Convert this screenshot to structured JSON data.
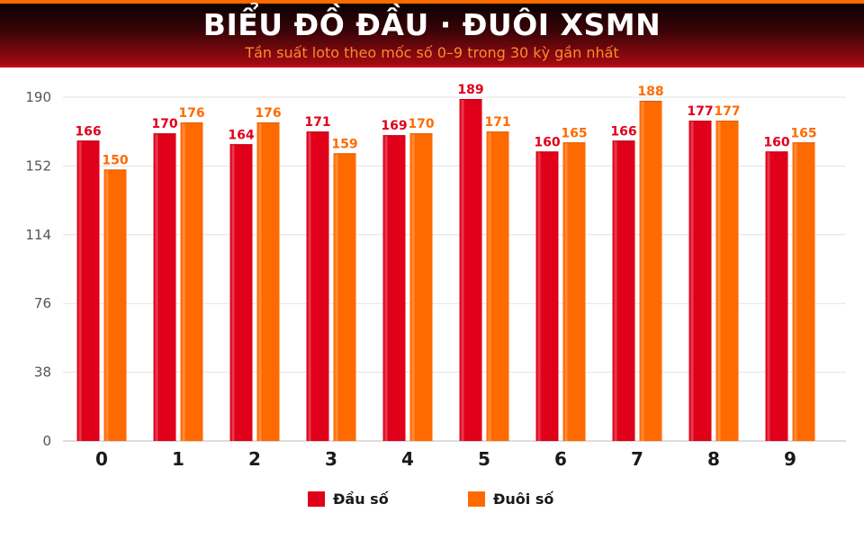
{
  "header": {
    "title": "BIỂU ĐỒ ĐẦU · ĐUÔI XSMN",
    "subtitle": "Tần suất loto theo mốc số 0–9 trong 30 kỳ gần nhất"
  },
  "colors": {
    "dau": "#e0001a",
    "duoi": "#ff6a00",
    "header_bg_dark": "#0b0102",
    "header_bg_red": "#a30a12",
    "accent_orange": "#ff6a00"
  },
  "chart_data": {
    "type": "bar",
    "title": "BIỂU ĐỒ ĐẦU · ĐUÔI XSMN",
    "subtitle": "Tần suất loto theo mốc số 0–9 trong 30 kỳ gần nhất",
    "xlabel": "",
    "ylabel": "",
    "categories": [
      "0",
      "1",
      "2",
      "3",
      "4",
      "5",
      "6",
      "7",
      "8",
      "9"
    ],
    "series": [
      {
        "name": "Đầu số",
        "values": [
          166,
          170,
          164,
          171,
          169,
          189,
          160,
          166,
          177,
          160
        ]
      },
      {
        "name": "Đuôi số",
        "values": [
          150,
          176,
          176,
          159,
          170,
          171,
          165,
          188,
          177,
          165
        ]
      }
    ],
    "ylim": [
      0,
      190
    ],
    "yticks": [
      "0",
      "38",
      "76",
      "114",
      "152",
      "190"
    ],
    "grid": true,
    "legend_position": "bottom"
  },
  "legend": {
    "items": [
      {
        "label": "Đầu số",
        "color": "#e0001a"
      },
      {
        "label": "Đuôi số",
        "color": "#ff6a00"
      }
    ]
  }
}
